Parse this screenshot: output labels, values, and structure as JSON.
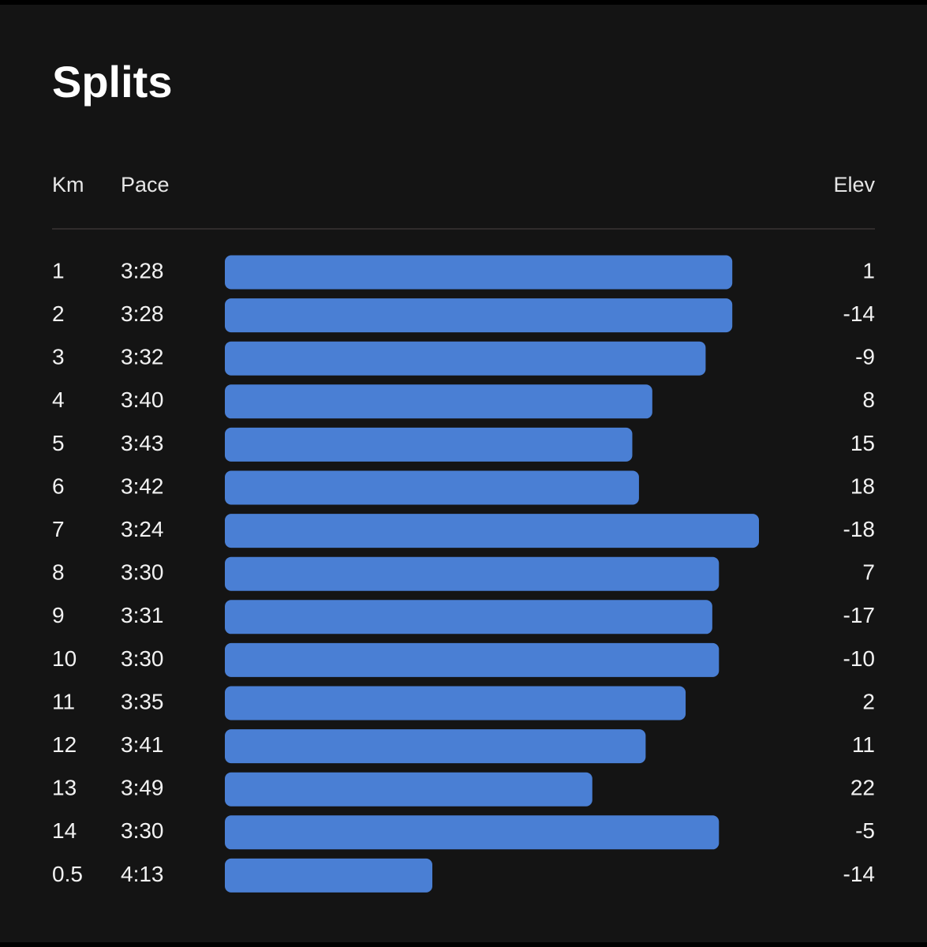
{
  "title": "Splits",
  "columns": {
    "km": "Km",
    "pace": "Pace",
    "elev": "Elev"
  },
  "rows": [
    {
      "km": 1,
      "pace": "3:28",
      "elev": 1
    },
    {
      "km": 2,
      "pace": "3:28",
      "elev": -14
    },
    {
      "km": 3,
      "pace": "3:32",
      "elev": -9
    },
    {
      "km": 4,
      "pace": "3:40",
      "elev": 8
    },
    {
      "km": 5,
      "pace": "3:43",
      "elev": 15
    },
    {
      "km": 6,
      "pace": "3:42",
      "elev": 18
    },
    {
      "km": 7,
      "pace": "3:24",
      "elev": -18
    },
    {
      "km": 8,
      "pace": "3:30",
      "elev": 7
    },
    {
      "km": 9,
      "pace": "3:31",
      "elev": -17
    },
    {
      "km": 10,
      "pace": "3:30",
      "elev": -10
    },
    {
      "km": 11,
      "pace": "3:35",
      "elev": 2
    },
    {
      "km": 12,
      "pace": "3:41",
      "elev": 11
    },
    {
      "km": 13,
      "pace": "3:49",
      "elev": 22
    },
    {
      "km": 14,
      "pace": "3:30",
      "elev": -5
    },
    {
      "km": 0.5,
      "pace": "4:13",
      "elev": -14
    }
  ]
}
